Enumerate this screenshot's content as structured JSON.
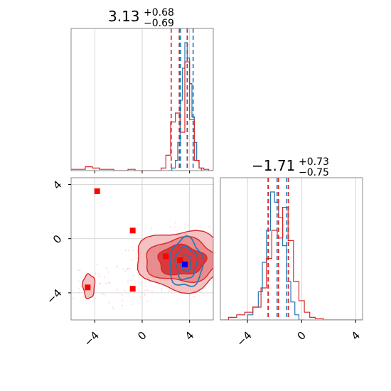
{
  "colors": {
    "blue": "#1f77b4",
    "red": "#d62728",
    "red_fill_light": "#f4c2c3",
    "red_fill_mid": "#e88c8e",
    "red_fill_dark": "#d83a3c",
    "grid": "#cccccc",
    "marker_blue": "#0000ff",
    "marker_red": "#ff0000"
  },
  "chart_data": [
    {
      "type": "histogram",
      "panel": "param1-marginal",
      "title": {
        "value": "3.13",
        "sup": "+0.68",
        "sub": "−0.69"
      },
      "xlim": [
        -6,
        6
      ],
      "grid": true,
      "x_ticks": [
        -4,
        0,
        4
      ],
      "x_tick_labels_shown": false,
      "series": [
        {
          "name": "",
          "color": "#1f77b4",
          "bin_edges": [
            2.2,
            2.5,
            2.8,
            3.0,
            3.2,
            3.4,
            3.6,
            3.8,
            4.0,
            4.2,
            4.4,
            4.6,
            4.8,
            5.0,
            5.3
          ],
          "counts": [
            0,
            2,
            8,
            22,
            55,
            80,
            100,
            88,
            68,
            42,
            22,
            8,
            2,
            0
          ],
          "quantiles": [
            3.24,
            3.8,
            4.3
          ]
        },
        {
          "name": "",
          "color": "#d62728",
          "bin_edges": [
            -6,
            -5.4,
            -4.8,
            -4.2,
            -3.6,
            -3.0,
            -2.4,
            -1.8,
            -1.2,
            -0.6,
            0,
            0.6,
            1.2,
            1.6,
            2.0,
            2.4,
            2.8,
            3.2,
            3.6,
            4.0,
            4.4,
            4.8,
            5.2,
            5.6,
            6
          ],
          "counts": [
            1,
            1,
            3,
            2,
            1,
            1,
            0,
            0,
            1,
            0,
            0,
            0,
            0,
            2,
            12,
            38,
            45,
            30,
            85,
            40,
            8,
            2,
            1,
            0
          ],
          "quantiles": [
            2.45,
            3.13,
            3.81
          ]
        }
      ]
    },
    {
      "type": "scatter",
      "panel": "joint",
      "xlim": [
        -6,
        6
      ],
      "ylim": [
        -6,
        4.5
      ],
      "grid": true,
      "x_ticks": [
        -4,
        0,
        4
      ],
      "y_ticks": [
        -4,
        0,
        4
      ],
      "x_tick_labels": [
        "−4",
        "0",
        "4"
      ],
      "y_tick_labels": [
        "−4",
        "0",
        "4"
      ],
      "red_markers": [
        {
          "x": -3.8,
          "y": 3.5
        },
        {
          "x": -0.8,
          "y": 0.6
        },
        {
          "x": -4.6,
          "y": -3.6
        },
        {
          "x": -0.8,
          "y": -3.7
        },
        {
          "x": 2.0,
          "y": -1.3
        },
        {
          "x": 3.2,
          "y": -1.6
        }
      ],
      "blue_markers": [
        {
          "x": 3.6,
          "y": -1.9
        }
      ],
      "red_contours": {
        "center": [
          3.3,
          -1.6
        ],
        "levels": [
          {
            "rx": 3.8,
            "ry": 2.2
          },
          {
            "rx": 3.0,
            "ry": 1.6
          },
          {
            "rx": 2.0,
            "ry": 1.1
          }
        ],
        "secondary_lobe": {
          "center": [
            -4.5,
            -3.5
          ],
          "rx": 0.5,
          "ry": 0.9
        }
      },
      "blue_contours": {
        "center": [
          3.7,
          -1.8
        ],
        "levels": [
          {
            "rx": 1.4,
            "ry": 1.8
          },
          {
            "rx": 0.9,
            "ry": 1.2
          },
          {
            "rx": 0.45,
            "ry": 0.6
          }
        ]
      }
    },
    {
      "type": "histogram",
      "panel": "param2-marginal",
      "title": {
        "value": "−1.71",
        "sup": "+0.73",
        "sub": "−0.75"
      },
      "xlim": [
        -6,
        4.5
      ],
      "grid": true,
      "x_ticks": [
        -4,
        0,
        4
      ],
      "x_tick_labels": [
        "−4",
        "0",
        "4"
      ],
      "series": [
        {
          "name": "",
          "color": "#1f77b4",
          "bin_edges": [
            -4.4,
            -4.0,
            -3.6,
            -3.2,
            -2.9,
            -2.6,
            -2.3,
            -2.0,
            -1.7,
            -1.4,
            -1.1,
            -0.8,
            -0.5,
            -0.2,
            0.2
          ],
          "counts": [
            0,
            4,
            10,
            22,
            45,
            70,
            100,
            92,
            80,
            58,
            30,
            14,
            4,
            0
          ],
          "quantiles": [
            -2.48,
            -1.81,
            -1.1
          ]
        },
        {
          "name": "",
          "color": "#d62728",
          "bin_edges": [
            -6,
            -5.4,
            -4.8,
            -4.2,
            -3.6,
            -3.0,
            -2.6,
            -2.2,
            -1.8,
            -1.4,
            -1.0,
            -0.6,
            -0.2,
            0.2,
            0.6,
            1.0,
            1.6,
            2.4,
            3.2,
            4.5
          ],
          "counts": [
            0,
            2,
            4,
            6,
            10,
            25,
            48,
            70,
            64,
            88,
            62,
            30,
            15,
            6,
            2,
            1,
            0,
            0,
            0
          ],
          "quantiles": [
            -2.46,
            -1.71,
            -0.98
          ]
        }
      ]
    }
  ]
}
